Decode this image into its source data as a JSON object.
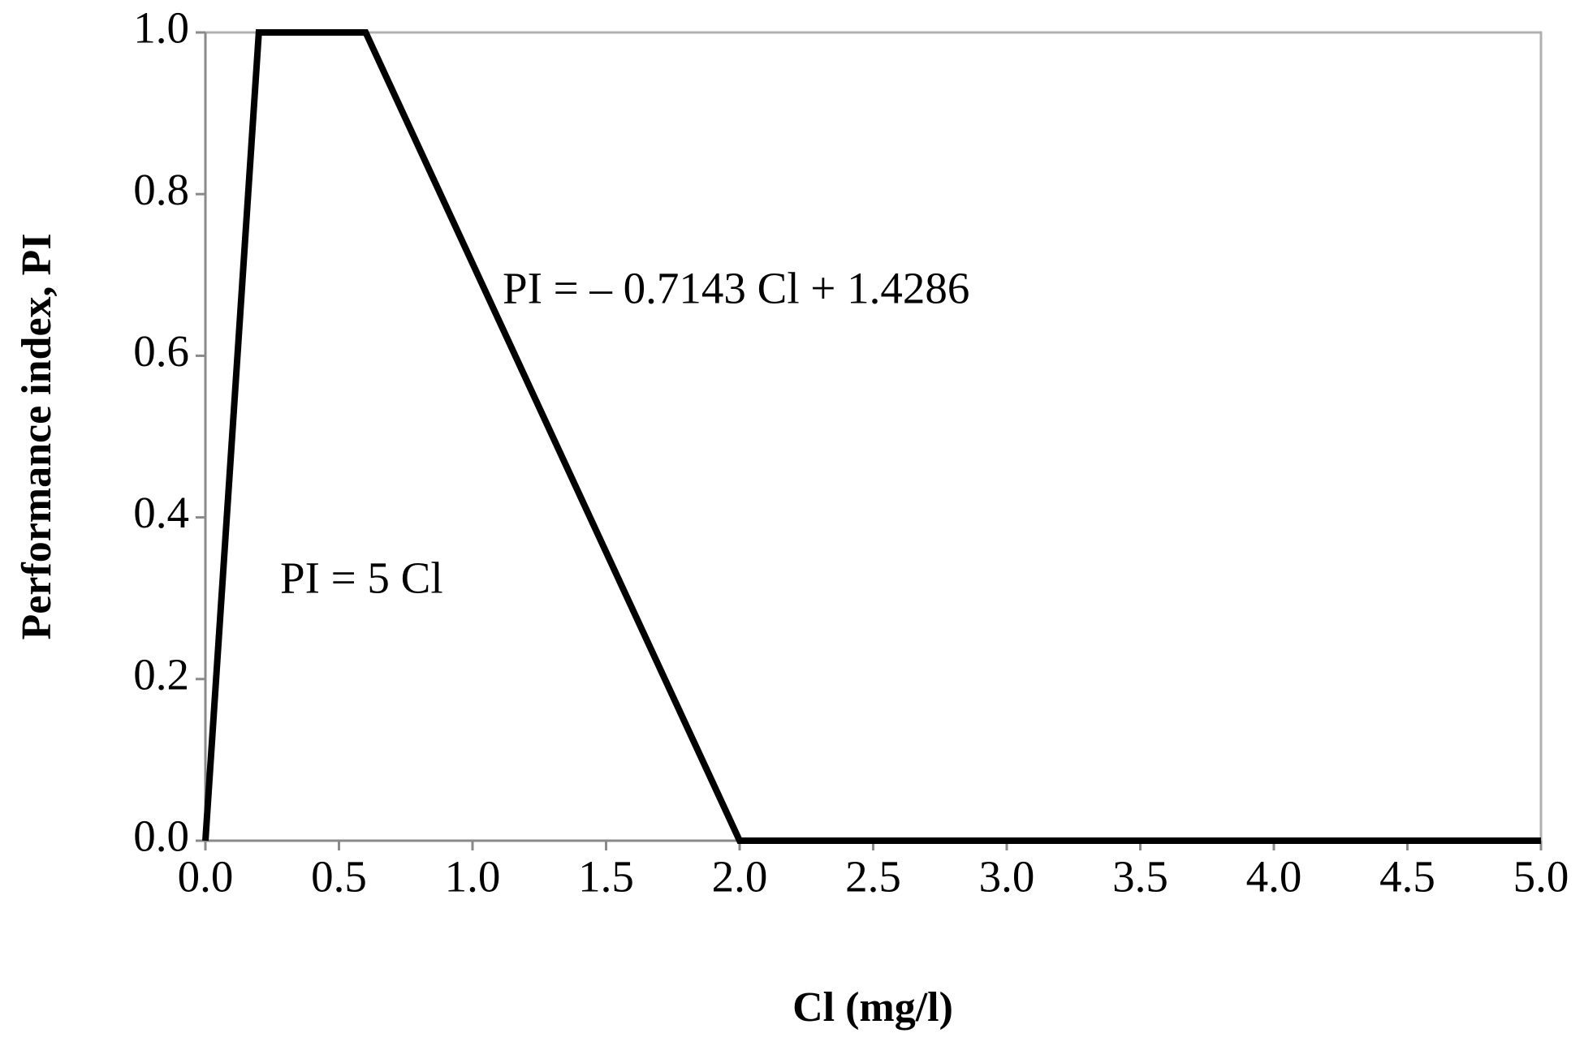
{
  "chart_data": {
    "type": "line",
    "x_label": "Cl (mg/l)",
    "y_label": "Performance index, PI",
    "annotations": [
      "PI = – 0.7143 Cl + 1.4286",
      "PI = 5 Cl"
    ],
    "x": [
      0,
      0.2,
      0.6,
      2.0,
      5.0
    ],
    "series": [
      {
        "color": "#000000",
        "values": [
          0,
          1,
          1,
          0,
          0
        ]
      }
    ],
    "xlim": [
      0,
      5
    ],
    "ylim": [
      0,
      1
    ],
    "xticks": [
      {
        "value": 0,
        "label": "0.0"
      },
      {
        "value": 0.5,
        "label": "0.5"
      },
      {
        "value": 1,
        "label": "1.0"
      },
      {
        "value": 1.5,
        "label": "1.5"
      },
      {
        "value": 2,
        "label": "2.0"
      },
      {
        "value": 2.5,
        "label": "2.5"
      },
      {
        "value": 3,
        "label": "3.0"
      },
      {
        "value": 3.5,
        "label": "3.5"
      },
      {
        "value": 4,
        "label": "4.0"
      },
      {
        "value": 4.5,
        "label": "4.5"
      },
      {
        "value": 5,
        "label": "5.0"
      }
    ],
    "yticks": [
      {
        "value": 0,
        "label": "0.0"
      },
      {
        "value": 0.2,
        "label": "0.2"
      },
      {
        "value": 0.4,
        "label": "0.4"
      },
      {
        "value": 0.6,
        "label": "0.6"
      },
      {
        "value": 0.8,
        "label": "0.8"
      },
      {
        "value": 1,
        "label": "1.0"
      }
    ],
    "grid": false
  }
}
